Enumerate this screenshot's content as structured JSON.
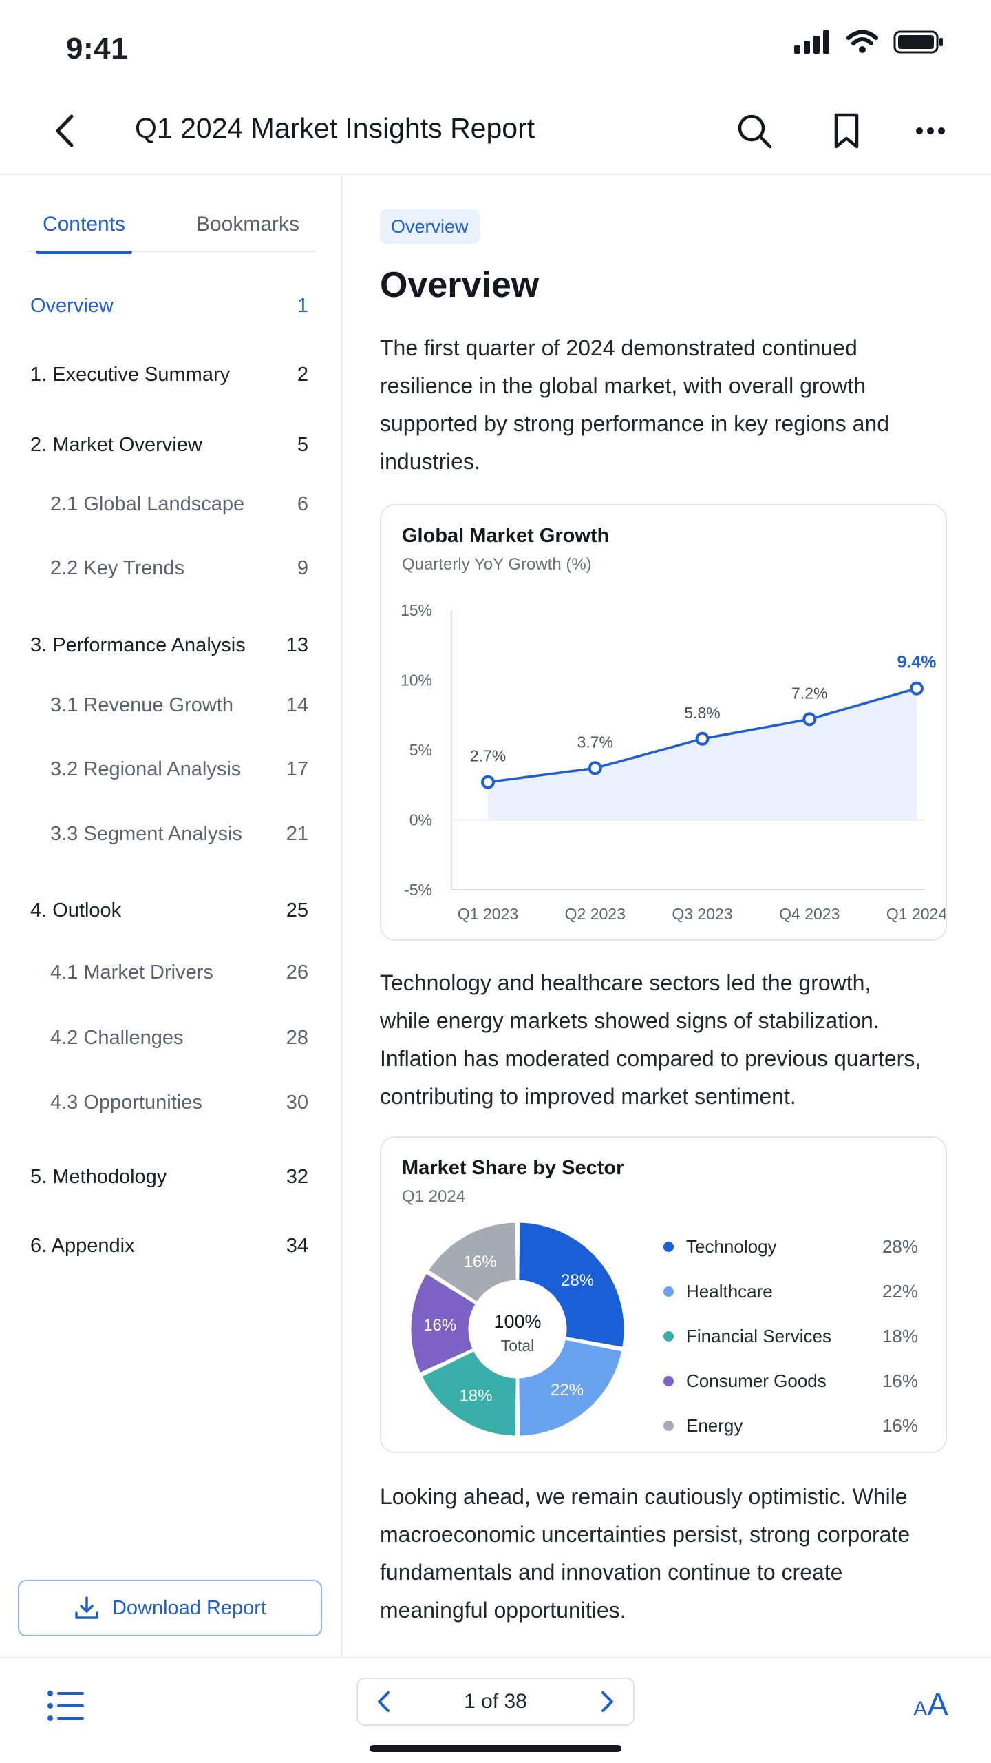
{
  "status_bar": {
    "time": "9:41"
  },
  "header": {
    "title": "Q1 2024 Market Insights Report"
  },
  "sidebar": {
    "tabs": [
      {
        "label": "Contents"
      },
      {
        "label": "Bookmarks"
      }
    ],
    "toc": [
      {
        "label": "Overview",
        "page": "1"
      },
      {
        "label": "1. Executive Summary",
        "page": "2"
      },
      {
        "label": "2. Market Overview",
        "page": "5"
      },
      {
        "label": "2.1 Global Landscape",
        "page": "6"
      },
      {
        "label": "2.2 Key Trends",
        "page": "9"
      },
      {
        "label": "3. Performance Analysis",
        "page": "13"
      },
      {
        "label": "3.1 Revenue Growth",
        "page": "14"
      },
      {
        "label": "3.2 Regional Analysis",
        "page": "17"
      },
      {
        "label": "3.3 Segment Analysis",
        "page": "21"
      },
      {
        "label": "4. Outlook",
        "page": "25"
      },
      {
        "label": "4.1 Market Drivers",
        "page": "26"
      },
      {
        "label": "4.2 Challenges",
        "page": "28"
      },
      {
        "label": "4.3 Opportunities",
        "page": "30"
      },
      {
        "label": "5. Methodology",
        "page": "32"
      },
      {
        "label": "6. Appendix",
        "page": "34"
      }
    ],
    "download_label": "Download Report"
  },
  "main": {
    "chip": "Overview",
    "title": "Overview",
    "para1": "The first quarter of 2024 demonstrated continued resilience in the global market, with overall growth supported by strong performance in key regions and industries.",
    "para2": "Technology and healthcare sectors led the growth, while energy markets showed signs of stabilization. Inflation has moderated compared to previous quarters, contributing to improved market sentiment.",
    "para3": "Looking ahead, we remain cautiously optimistic. While macroeconomic uncertainties persist, strong corporate fundamentals and innovation continue to create meaningful opportunities."
  },
  "chart_data": [
    {
      "type": "line",
      "title": "Global Market Growth",
      "subtitle": "Quarterly YoY Growth (%)",
      "categories": [
        "Q1 2023",
        "Q2 2023",
        "Q3 2023",
        "Q4 2023",
        "Q1 2024"
      ],
      "values": [
        2.7,
        3.7,
        5.8,
        7.2,
        9.4
      ],
      "data_labels": [
        "2.7%",
        "3.7%",
        "5.8%",
        "7.2%",
        "9.4%"
      ],
      "yticks": [
        15,
        10,
        5,
        0,
        -5
      ],
      "ytick_labels": [
        "15%",
        "10%",
        "5%",
        "0%",
        "-5%"
      ],
      "ylim": [
        -5,
        15
      ],
      "grid": false,
      "color": "#1f5fcf",
      "highlight_color": "#1f5fcf"
    },
    {
      "type": "pie",
      "title": "Market Share by Sector",
      "subtitle": "Q1 2024",
      "center_value": "100%",
      "center_label": "Total",
      "slices": [
        {
          "name": "Technology",
          "value": 28,
          "label": "28%",
          "color": "#1a5fd6"
        },
        {
          "name": "Healthcare",
          "value": 22,
          "label": "22%",
          "color": "#69a2ee"
        },
        {
          "name": "Financial Services",
          "value": 18,
          "label": "18%",
          "color": "#3aafa9"
        },
        {
          "name": "Consumer Goods",
          "value": 16,
          "label": "16%",
          "color": "#7c62c4"
        },
        {
          "name": "Energy",
          "value": 16,
          "label": "16%",
          "color": "#a6abb3"
        }
      ],
      "legend": "right"
    }
  ],
  "bottom_bar": {
    "page_indicator": "1 of 38",
    "font_glyph_small": "A",
    "font_glyph_large": "A"
  },
  "colors": {
    "accent": "#1f5fcf",
    "divider": "#e6e8ec"
  },
  "icons": [
    "back-chevron-icon",
    "search-icon",
    "bookmark-icon",
    "more-icon",
    "download-icon",
    "list-icon",
    "chevron-left-icon",
    "chevron-right-icon",
    "font-size-icon"
  ]
}
